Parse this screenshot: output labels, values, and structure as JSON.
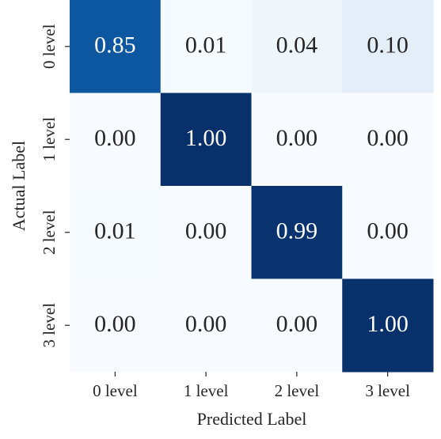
{
  "chart_data": {
    "type": "heatmap",
    "x_label": "Predicted Label",
    "y_label": "Actual Label",
    "x_categories": [
      "0 level",
      "1 level",
      "2 level",
      "3 level"
    ],
    "y_categories": [
      "0 level",
      "1 level",
      "2 level",
      "3 level"
    ],
    "values": [
      [
        0.85,
        0.01,
        0.04,
        0.1
      ],
      [
        0.0,
        1.0,
        0.0,
        0.0
      ],
      [
        0.01,
        0.0,
        0.99,
        0.0
      ],
      [
        0.0,
        0.0,
        0.0,
        1.0
      ]
    ],
    "value_labels": [
      [
        "0.85",
        "0.01",
        "0.04",
        "0.10"
      ],
      [
        "0.00",
        "1.00",
        "0.00",
        "0.00"
      ],
      [
        "0.01",
        "0.00",
        "0.99",
        "0.00"
      ],
      [
        "0.00",
        "0.00",
        "0.00",
        "1.00"
      ]
    ],
    "colormap": "Blues"
  }
}
